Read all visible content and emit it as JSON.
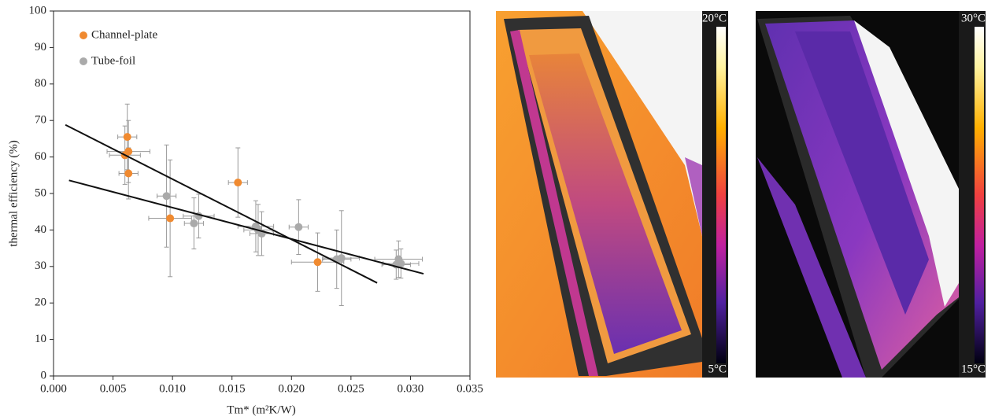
{
  "chart_data": {
    "type": "scatter",
    "xlabel": "Tm* (m²K/W)",
    "ylabel": "thermal efficiency (%)",
    "xlim": [
      0,
      0.035
    ],
    "ylim": [
      0,
      100
    ],
    "xticks": [
      {
        "value": 0,
        "label": "0.000"
      },
      {
        "value": 0.005,
        "label": "0.005"
      },
      {
        "value": 0.01,
        "label": "0.010"
      },
      {
        "value": 0.015,
        "label": "0.015"
      },
      {
        "value": 0.02,
        "label": "0.020"
      },
      {
        "value": 0.025,
        "label": "0.025"
      },
      {
        "value": 0.03,
        "label": "0.030"
      },
      {
        "value": 0.035,
        "label": "0.035"
      }
    ],
    "yticks": [
      0,
      10,
      20,
      30,
      40,
      50,
      60,
      70,
      80,
      90,
      100
    ],
    "legend": "upper left",
    "series": [
      {
        "name": "Channel-plate",
        "color": "#f08a30",
        "x": [
          0.006,
          0.0062,
          0.0063,
          0.0063,
          0.0098,
          0.0155,
          0.0222
        ],
        "values": [
          60.5,
          65.5,
          61.5,
          55.5,
          43.2,
          53.0,
          31.2
        ],
        "yerr": [
          8,
          9,
          8.5,
          7,
          16,
          9.5,
          8
        ],
        "xerr": [
          0.0013,
          0.0008,
          0.0018,
          0.0008,
          0.0018,
          0.0008,
          0.0022
        ],
        "trend_x": [
          0.001,
          0.0272
        ],
        "trend_y": [
          68.8,
          25.5
        ]
      },
      {
        "name": "Tube-foil",
        "color": "#aaaaaa",
        "x": [
          0.0095,
          0.0118,
          0.0122,
          0.017,
          0.0172,
          0.0175,
          0.0206,
          0.0238,
          0.0242,
          0.0288,
          0.029,
          0.0292
        ],
        "values": [
          49.3,
          41.8,
          43.8,
          41.0,
          40.0,
          39.0,
          40.8,
          32.0,
          32.3,
          30.5,
          32.0,
          30.8
        ],
        "yerr": [
          14,
          7,
          6,
          7,
          7,
          6,
          7.5,
          8,
          13,
          4,
          5,
          4
        ],
        "xerr": [
          0.0008,
          0.0008,
          0.0013,
          0.0015,
          0.0012,
          0.001,
          0.0008,
          0.0012,
          0.0015,
          0.0012,
          0.002,
          0.0015
        ],
        "trend_x": [
          0.0013,
          0.0311
        ],
        "trend_y": [
          53.6,
          28.0
        ]
      }
    ]
  },
  "images": [
    {
      "scale_max": "20°C",
      "scale_min": "5°C"
    },
    {
      "scale_max": "30°C",
      "scale_min": "15°C"
    }
  ]
}
